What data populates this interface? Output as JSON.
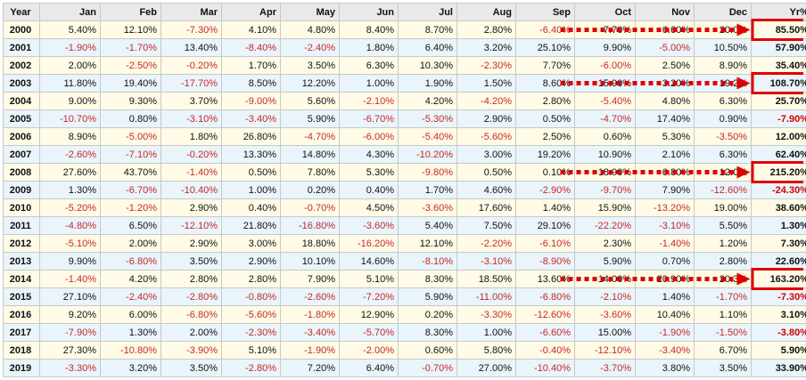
{
  "headers": [
    "Year",
    "Jan",
    "Feb",
    "Mar",
    "Apr",
    "May",
    "Jun",
    "Jul",
    "Aug",
    "Sep",
    "Oct",
    "Nov",
    "Dec",
    "Yr%"
  ],
  "rows": [
    {
      "year": "2000",
      "cells": [
        "5.40%",
        "12.10%",
        "-7.30%",
        "4.10%",
        "4.80%",
        "8.40%",
        "8.70%",
        "2.80%",
        "-6.40%",
        "7.70%",
        "6.60%",
        "20.0%"
      ],
      "yr": "85.50%"
    },
    {
      "year": "2001",
      "cells": [
        "-1.90%",
        "-1.70%",
        "13.40%",
        "-8.40%",
        "-2.40%",
        "1.80%",
        "6.40%",
        "3.20%",
        "25.10%",
        "9.90%",
        "-5.00%",
        "10.50%"
      ],
      "yr": "57.90%"
    },
    {
      "year": "2002",
      "cells": [
        "2.00%",
        "-2.50%",
        "-0.20%",
        "1.70%",
        "3.50%",
        "6.30%",
        "10.30%",
        "-2.30%",
        "7.70%",
        "-6.00%",
        "2.50%",
        "8.90%"
      ],
      "yr": "35.40%"
    },
    {
      "year": "2003",
      "cells": [
        "11.80%",
        "19.40%",
        "-17.70%",
        "8.50%",
        "12.20%",
        "1.00%",
        "1.90%",
        "1.50%",
        "8.60%",
        "15.90%",
        "3.20%",
        "19.2%"
      ],
      "yr": "108.70%"
    },
    {
      "year": "2004",
      "cells": [
        "9.00%",
        "9.30%",
        "3.70%",
        "-9.00%",
        "5.60%",
        "-2.10%",
        "4.20%",
        "-4.20%",
        "2.80%",
        "-5.40%",
        "4.80%",
        "6.30%"
      ],
      "yr": "25.70%"
    },
    {
      "year": "2005",
      "cells": [
        "-10.70%",
        "0.80%",
        "-3.10%",
        "-3.40%",
        "5.90%",
        "-6.70%",
        "-5.30%",
        "2.90%",
        "0.50%",
        "-4.70%",
        "17.40%",
        "0.90%"
      ],
      "yr": "-7.90%"
    },
    {
      "year": "2006",
      "cells": [
        "8.90%",
        "-5.00%",
        "1.80%",
        "26.80%",
        "-4.70%",
        "-6.00%",
        "-5.40%",
        "-5.60%",
        "2.50%",
        "0.60%",
        "5.30%",
        "-3.50%"
      ],
      "yr": "12.00%"
    },
    {
      "year": "2007",
      "cells": [
        "-2.60%",
        "-7.10%",
        "-0.20%",
        "13.30%",
        "14.80%",
        "4.30%",
        "-10.20%",
        "3.00%",
        "19.20%",
        "10.90%",
        "2.10%",
        "6.30%"
      ],
      "yr": "62.40%"
    },
    {
      "year": "2008",
      "cells": [
        "27.60%",
        "43.70%",
        "-1.40%",
        "0.50%",
        "7.80%",
        "5.30%",
        "-9.80%",
        "0.50%",
        "0.10%",
        "18.90%",
        "6.80%",
        "12.0%"
      ],
      "yr": "215.20%"
    },
    {
      "year": "2009",
      "cells": [
        "1.30%",
        "-6.70%",
        "-10.40%",
        "1.00%",
        "0.20%",
        "0.40%",
        "1.70%",
        "4.60%",
        "-2.90%",
        "-9.70%",
        "7.90%",
        "-12.60%"
      ],
      "yr": "-24.30%"
    },
    {
      "year": "2010",
      "cells": [
        "-5.20%",
        "-1.20%",
        "2.90%",
        "0.40%",
        "-0.70%",
        "4.50%",
        "-3.60%",
        "17.60%",
        "1.40%",
        "15.90%",
        "-13.20%",
        "19.00%"
      ],
      "yr": "38.60%"
    },
    {
      "year": "2011",
      "cells": [
        "-4.80%",
        "6.50%",
        "-12.10%",
        "21.80%",
        "-16.80%",
        "-3.60%",
        "5.40%",
        "7.50%",
        "29.10%",
        "-22.20%",
        "-3.10%",
        "5.50%"
      ],
      "yr": "1.30%"
    },
    {
      "year": "2012",
      "cells": [
        "-5.10%",
        "2.00%",
        "2.90%",
        "3.00%",
        "18.80%",
        "-16.20%",
        "12.10%",
        "-2.20%",
        "-6.10%",
        "2.30%",
        "-1.40%",
        "1.20%"
      ],
      "yr": "7.30%"
    },
    {
      "year": "2013",
      "cells": [
        "9.90%",
        "-6.80%",
        "3.50%",
        "2.90%",
        "10.10%",
        "14.60%",
        "-8.10%",
        "-3.10%",
        "-8.90%",
        "5.90%",
        "0.70%",
        "2.80%"
      ],
      "yr": "22.60%"
    },
    {
      "year": "2014",
      "cells": [
        "-1.40%",
        "4.20%",
        "2.80%",
        "2.80%",
        "7.90%",
        "5.10%",
        "8.30%",
        "18.50%",
        "13.60%",
        "14.00%",
        "20.90%",
        "20.3%"
      ],
      "yr": "163.20%"
    },
    {
      "year": "2015",
      "cells": [
        "27.10%",
        "-2.40%",
        "-2.80%",
        "-0.80%",
        "-2.60%",
        "-7.20%",
        "5.90%",
        "-11.00%",
        "-6.80%",
        "-2.10%",
        "1.40%",
        "-1.70%"
      ],
      "yr": "-7.30%"
    },
    {
      "year": "2016",
      "cells": [
        "9.20%",
        "6.00%",
        "-6.80%",
        "-5.60%",
        "-1.80%",
        "12.90%",
        "0.20%",
        "-3.30%",
        "-12.60%",
        "-3.60%",
        "10.40%",
        "1.10%"
      ],
      "yr": "3.10%"
    },
    {
      "year": "2017",
      "cells": [
        "-7.90%",
        "1.30%",
        "2.00%",
        "-2.30%",
        "-3.40%",
        "-5.70%",
        "8.30%",
        "1.00%",
        "-6.60%",
        "15.00%",
        "-1.90%",
        "-1.50%"
      ],
      "yr": "-3.80%"
    },
    {
      "year": "2018",
      "cells": [
        "27.30%",
        "-10.80%",
        "-3.90%",
        "5.10%",
        "-1.90%",
        "-2.00%",
        "0.60%",
        "5.80%",
        "-0.40%",
        "-12.10%",
        "-3.40%",
        "6.70%"
      ],
      "yr": "5.90%"
    },
    {
      "year": "2019",
      "cells": [
        "-3.30%",
        "3.20%",
        "3.50%",
        "-2.80%",
        "7.20%",
        "6.40%",
        "-0.70%",
        "27.00%",
        "-10.40%",
        "-3.70%",
        "3.80%",
        "3.50%"
      ],
      "yr": "33.90%"
    }
  ],
  "highlight_years": [
    "2000",
    "2003",
    "2008",
    "2014"
  ],
  "colors": {
    "highlight_red": "#e00000",
    "negative_red": "#c62828",
    "row_odd": "#fffbe6",
    "row_even": "#e9f4fb",
    "header_bg": "#e9e9e9"
  }
}
